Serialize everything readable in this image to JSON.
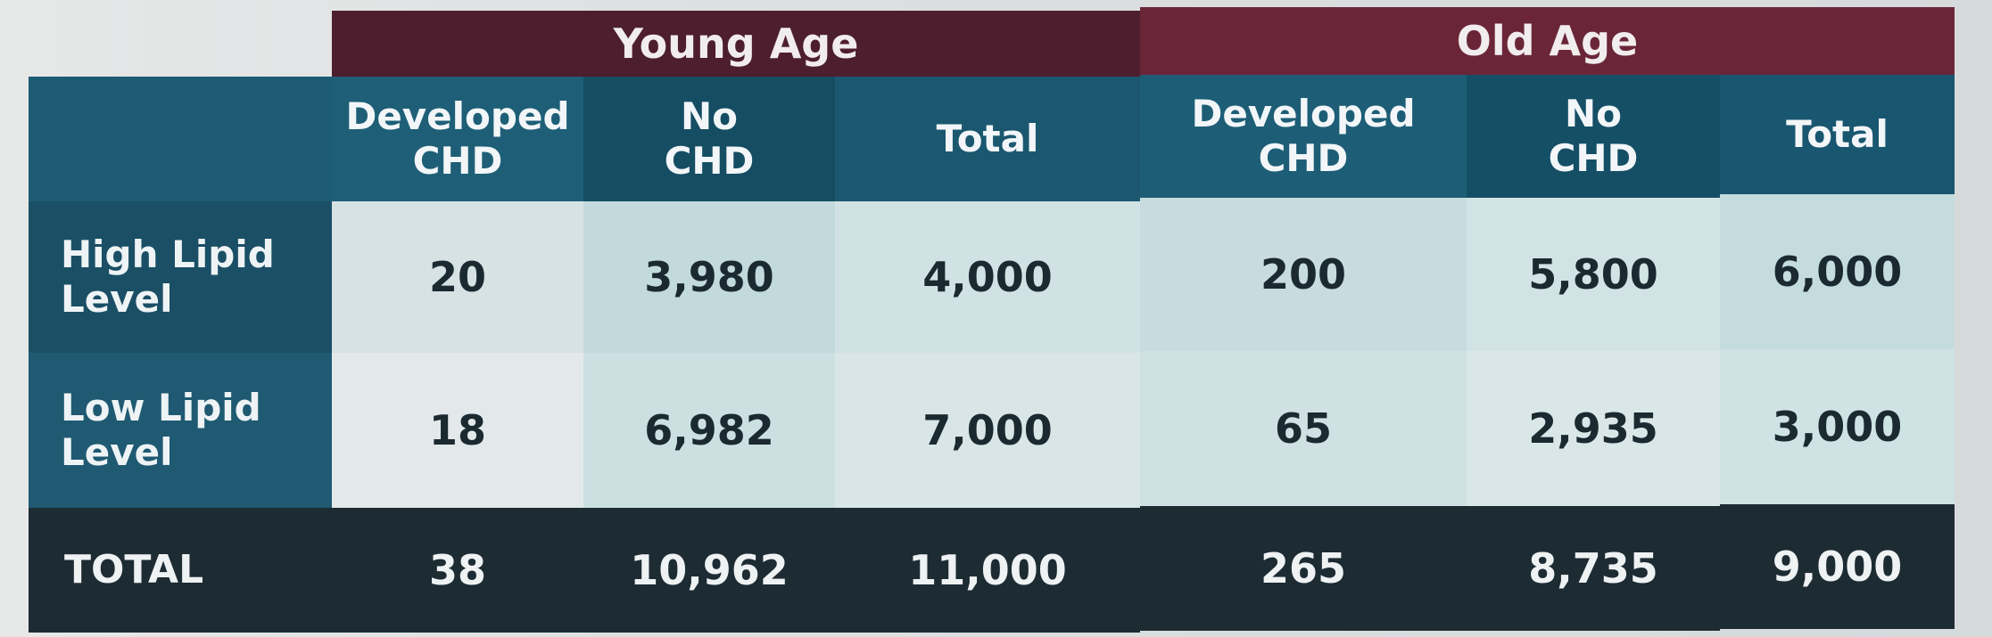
{
  "groups": {
    "young": "Young Age",
    "old": "Old Age"
  },
  "columns": [
    "Developed\nCHD",
    "No\nCHD",
    "Total",
    "Developed\nCHD",
    "No\nCHD",
    "Total"
  ],
  "rows": [
    {
      "label": "High Lipid\nLevel",
      "values": [
        "20",
        "3,980",
        "4,000",
        "200",
        "5,800",
        "6,000"
      ]
    },
    {
      "label": "Low Lipid\nLevel",
      "values": [
        "18",
        "6,982",
        "7,000",
        "65",
        "2,935",
        "3,000"
      ]
    }
  ],
  "total": {
    "label": "TOTAL",
    "values": [
      "38",
      "10,962",
      "11,000",
      "265",
      "8,735",
      "9,000"
    ]
  }
}
